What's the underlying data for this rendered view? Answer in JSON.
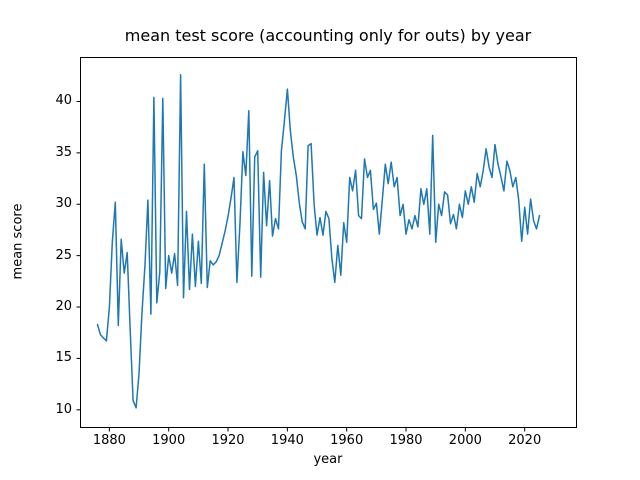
{
  "figure": {
    "background_color": "#ffffff",
    "frame_color": "#000000"
  },
  "chart_data": {
    "type": "line",
    "title": "mean test score (accounting only for outs) by year",
    "xlabel": "year",
    "ylabel": "mean score",
    "grid": false,
    "legend_position": "none",
    "line_color": "#1f77b4",
    "line_width": 1.5,
    "x_start_year": 1876,
    "x_end_year": 2025,
    "xticks": [
      1880,
      1900,
      1920,
      1940,
      1960,
      1980,
      2000,
      2020
    ],
    "yticks": [
      10,
      15,
      20,
      25,
      30,
      35,
      40
    ],
    "xlim": [
      1870.1,
      2037.3
    ],
    "ylim": [
      8.23,
      44.23
    ],
    "series": [
      {
        "name": "mean test score (accounting only for outs)",
        "values": [
          18.3,
          17.3,
          17.0,
          16.7,
          20.0,
          26.3,
          30.2,
          18.2,
          26.6,
          23.3,
          25.3,
          18.0,
          10.9,
          10.2,
          13.5,
          19.5,
          24.1,
          30.4,
          19.3,
          40.4,
          20.4,
          23.4,
          40.3,
          21.8,
          25.0,
          23.3,
          25.2,
          22.1,
          42.6,
          20.9,
          29.3,
          21.7,
          27.1,
          22.0,
          26.4,
          22.3,
          33.9,
          21.9,
          24.5,
          24.1,
          24.4,
          25.0,
          26.2,
          27.4,
          28.8,
          30.6,
          32.6,
          22.4,
          28.0,
          35.1,
          32.8,
          39.1,
          23.0,
          34.6,
          35.2,
          22.9,
          33.1,
          27.9,
          32.3,
          26.9,
          28.6,
          27.6,
          35.2,
          38.1,
          41.2,
          37.2,
          34.6,
          32.8,
          30.2,
          28.3,
          27.6,
          35.7,
          35.9,
          30.0,
          27.0,
          28.7,
          27.0,
          29.3,
          28.6,
          24.7,
          22.4,
          26.0,
          23.1,
          28.2,
          26.3,
          32.6,
          31.3,
          33.3,
          28.9,
          28.6,
          34.4,
          32.6,
          33.3,
          29.5,
          30.1,
          27.1,
          30.4,
          33.9,
          32.0,
          34.1,
          31.7,
          32.6,
          28.9,
          30.0,
          27.1,
          28.5,
          27.6,
          28.9,
          27.8,
          31.5,
          30.0,
          31.5,
          27.1,
          36.7,
          26.3,
          30.0,
          28.9,
          31.2,
          30.9,
          28.1,
          29.0,
          27.6,
          30.0,
          28.7,
          31.3,
          30.0,
          31.7,
          30.2,
          33.0,
          31.7,
          33.2,
          35.4,
          33.6,
          32.6,
          35.8,
          33.9,
          32.7,
          31.3,
          34.2,
          33.3,
          31.7,
          32.6,
          30.4,
          26.4,
          29.7,
          27.1,
          30.5,
          28.4,
          27.6,
          28.9
        ]
      }
    ]
  }
}
